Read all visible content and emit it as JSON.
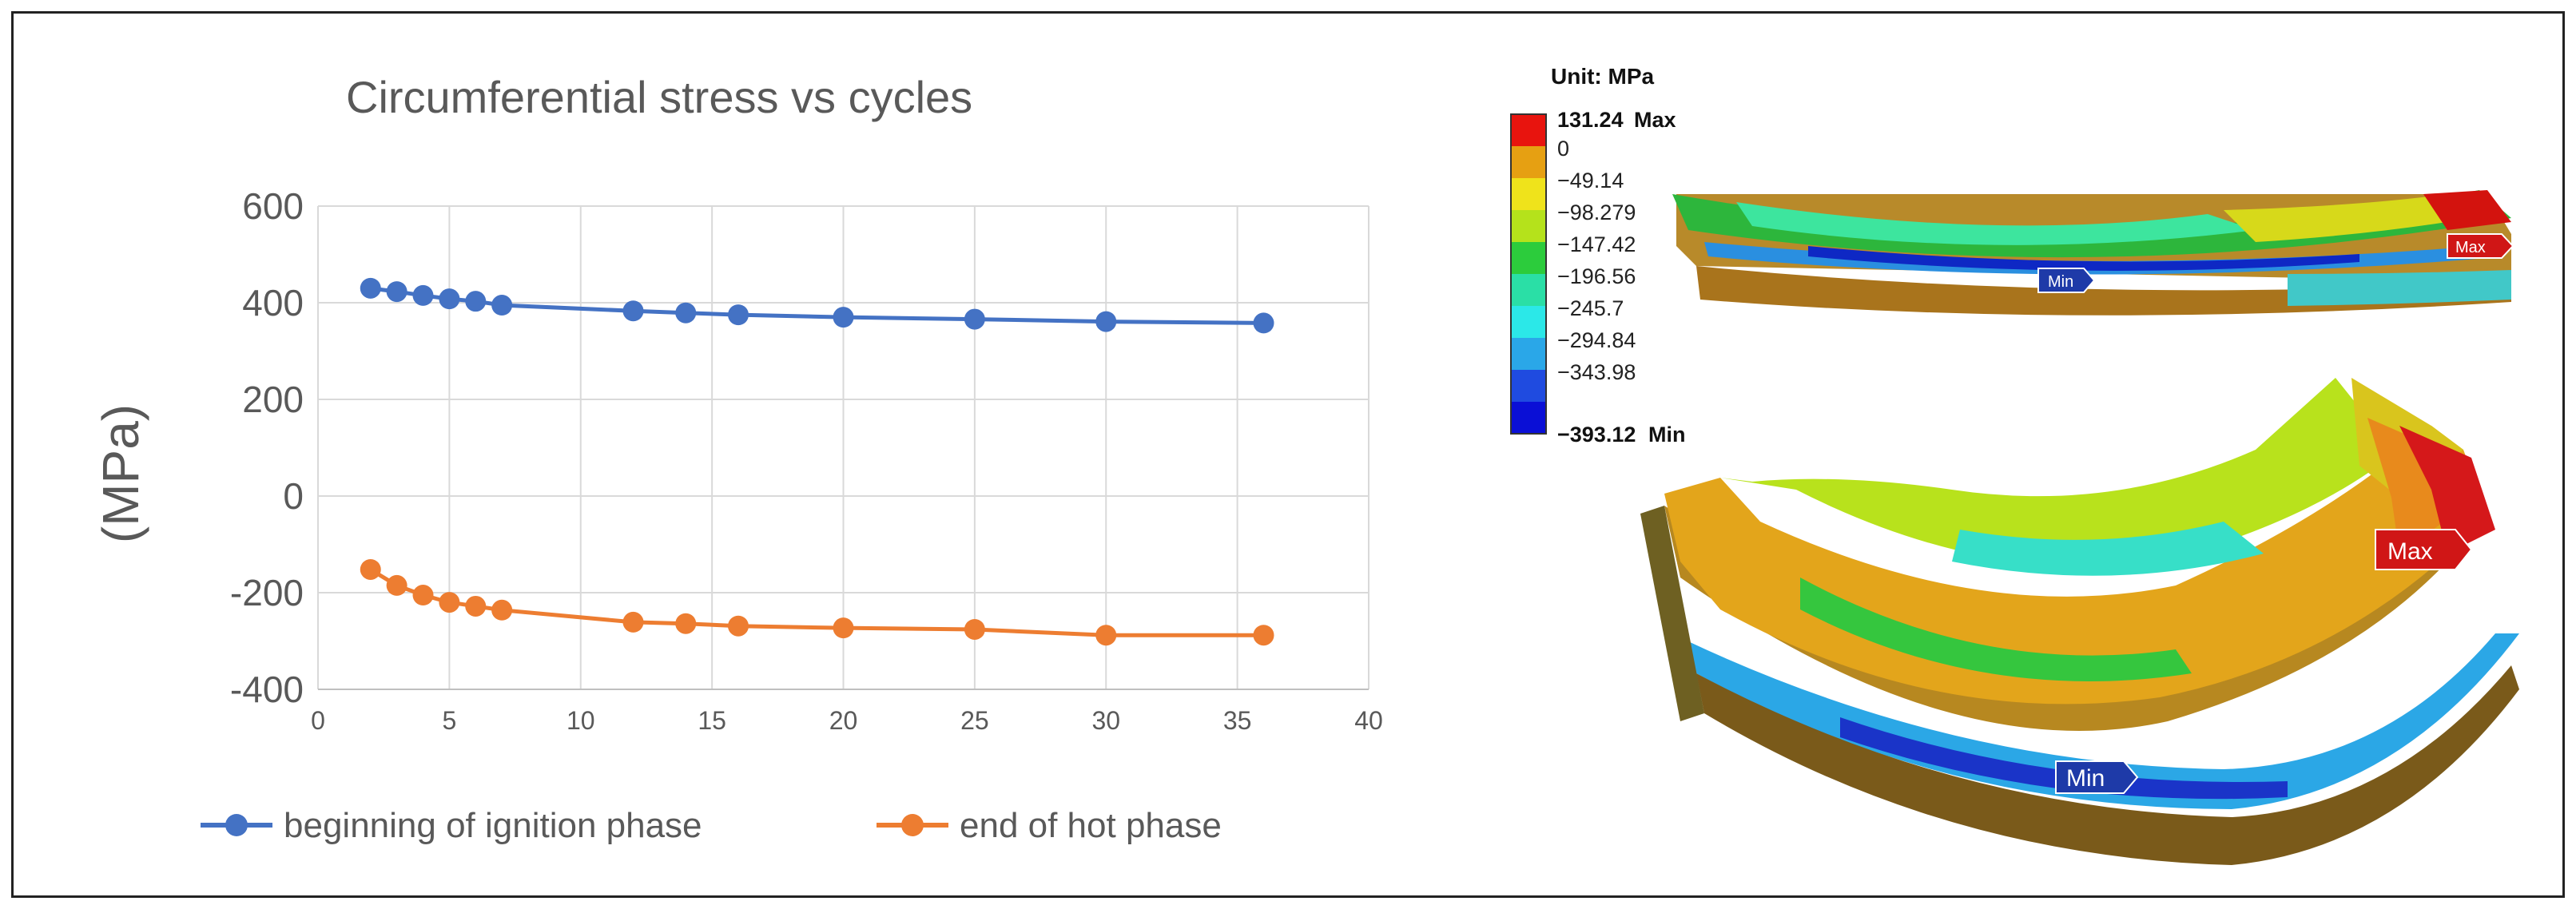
{
  "chart_data": {
    "type": "line",
    "title": "Circumferential stress vs cycles",
    "xlabel": "",
    "ylabel": "(MPa)",
    "xlim": [
      0,
      40
    ],
    "ylim": [
      -400,
      600
    ],
    "xticks": [
      0,
      5,
      10,
      15,
      20,
      25,
      30,
      35,
      40
    ],
    "yticks": [
      -400,
      -200,
      0,
      200,
      400,
      600
    ],
    "grid": true,
    "legend": "bottom",
    "series": [
      {
        "name": "beginning of ignition phase",
        "color": "#4472C4",
        "x": [
          2,
          3,
          4,
          5,
          6,
          7,
          12,
          14,
          16,
          20,
          25,
          30,
          36
        ],
        "y": [
          430,
          423,
          415,
          408,
          403,
          395,
          383,
          379,
          375,
          370,
          366,
          361,
          358
        ]
      },
      {
        "name": "end of hot phase",
        "color": "#ED7D31",
        "x": [
          2,
          3,
          4,
          5,
          6,
          7,
          12,
          14,
          16,
          20,
          25,
          30,
          36
        ],
        "y": [
          -152,
          -185,
          -205,
          -220,
          -228,
          -236,
          -261,
          -264,
          -269,
          -273,
          -276,
          -288,
          -288
        ]
      }
    ]
  },
  "contour": {
    "unit_label": "Unit: MPa",
    "levels": [
      "131.24",
      "0",
      "−49.14",
      "−98.279",
      "−147.42",
      "−196.56",
      "−245.7",
      "−294.84",
      "−343.98",
      "−393.12"
    ],
    "max_tag": "Max",
    "min_tag": "Min",
    "colors": [
      "#E8140E",
      "#E6A012",
      "#EFE31B",
      "#B5E21B",
      "#2CCC3C",
      "#2ADFA6",
      "#2BE8E8",
      "#2AA7E8",
      "#1F4BE0",
      "#0A0FD6"
    ],
    "flag_max": "Max",
    "flag_min": "Min"
  }
}
